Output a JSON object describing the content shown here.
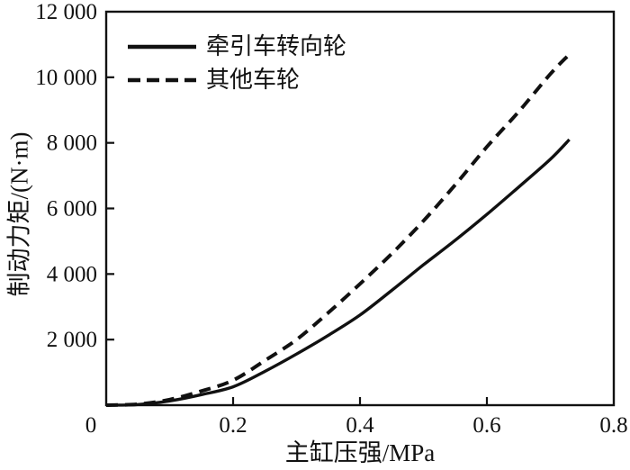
{
  "figure": {
    "background": "#ffffff",
    "ink": "#111111"
  },
  "chart_data": {
    "type": "line",
    "title": "",
    "xlabel": "主缸压强/MPa",
    "ylabel": "制动力矩/(N·m)",
    "xlim": [
      0,
      0.8
    ],
    "ylim": [
      0,
      12000
    ],
    "grid": false,
    "legend_position": "upper-left",
    "x_ticks": [
      {
        "value": 0,
        "label": "0"
      },
      {
        "value": 0.2,
        "label": "0.2"
      },
      {
        "value": 0.4,
        "label": "0.4"
      },
      {
        "value": 0.6,
        "label": "0.6"
      },
      {
        "value": 0.8,
        "label": "0.8"
      }
    ],
    "y_ticks": [
      {
        "value": 2000,
        "label": "2 000"
      },
      {
        "value": 4000,
        "label": "4 000"
      },
      {
        "value": 6000,
        "label": "6 000"
      },
      {
        "value": 8000,
        "label": "8 000"
      },
      {
        "value": 10000,
        "label": "10 000"
      },
      {
        "value": 12000,
        "label": "12 000"
      }
    ],
    "x": [
      0,
      0.05,
      0.1,
      0.15,
      0.2,
      0.25,
      0.3,
      0.35,
      0.4,
      0.45,
      0.5,
      0.55,
      0.6,
      0.65,
      0.7,
      0.73
    ],
    "series": [
      {
        "name": "牵引车转向轮",
        "style": "solid",
        "values": [
          0,
          20,
          130,
          320,
          560,
          1030,
          1560,
          2130,
          2750,
          3500,
          4280,
          5030,
          5820,
          6650,
          7500,
          8100
        ]
      },
      {
        "name": "其他车轮",
        "style": "dashed",
        "values": [
          0,
          30,
          170,
          430,
          760,
          1360,
          2000,
          2820,
          3700,
          4620,
          5620,
          6720,
          7880,
          8950,
          10100,
          10700
        ]
      }
    ]
  }
}
